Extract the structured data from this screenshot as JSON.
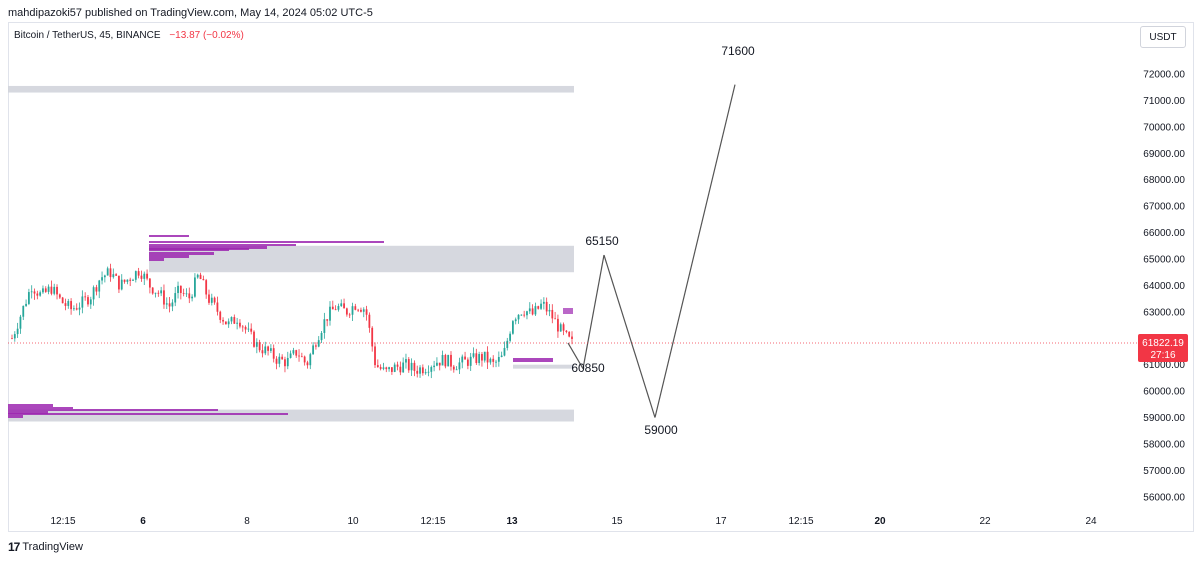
{
  "header": {
    "publisher": "mahdipazoki57 published on TradingView.com, May 14, 2024 05:02 UTC-5"
  },
  "symbol": {
    "name": "Bitcoin / TetherUS, 45, BINANCE",
    "change": "−13.87 (−0.02%)"
  },
  "currency_button": "USDT",
  "footer": {
    "logo_mark": "17",
    "logo_text": "TradingView"
  },
  "chart_data": {
    "type": "line",
    "price_axis": {
      "ticks": [
        56000,
        57000,
        58000,
        59000,
        60000,
        61000,
        62000,
        63000,
        64000,
        65000,
        66000,
        67000,
        68000,
        69000,
        70000,
        71000,
        72000
      ],
      "tick_labels": [
        "56000.00",
        "57000.00",
        "58000.00",
        "59000.00",
        "60000.00",
        "61000.00",
        "62000.00",
        "63000.00",
        "64000.00",
        "65000.00",
        "66000.00",
        "67000.00",
        "68000.00",
        "69000.00",
        "70000.00",
        "71000.00",
        "72000.00"
      ],
      "ylim": [
        55500,
        73100
      ]
    },
    "time_axis": {
      "labels": [
        {
          "text": "12:15",
          "bold": false
        },
        {
          "text": "6",
          "bold": true
        },
        {
          "text": "8",
          "bold": false
        },
        {
          "text": "10",
          "bold": false
        },
        {
          "text": "12:15",
          "bold": false
        },
        {
          "text": "13",
          "bold": true
        },
        {
          "text": "15",
          "bold": false
        },
        {
          "text": "17",
          "bold": false
        },
        {
          "text": "12:15",
          "bold": false
        },
        {
          "text": "20",
          "bold": true
        },
        {
          "text": "22",
          "bold": false
        },
        {
          "text": "24",
          "bold": false
        }
      ]
    },
    "current_price": {
      "value": 61822.19,
      "label": "61822.19",
      "countdown": "27:16",
      "color": "#f23645"
    },
    "zones": [
      {
        "name": "zone-top",
        "low": 71300,
        "high": 71550
      },
      {
        "name": "zone-mid",
        "low": 64500,
        "high": 65500
      },
      {
        "name": "zone-low",
        "low": 58850,
        "high": 59300
      },
      {
        "name": "zone-small",
        "low": 60850,
        "high": 61000
      }
    ],
    "projection": {
      "points": [
        {
          "label": "61822",
          "value": 61822
        },
        {
          "label": "60850",
          "value": 60850
        },
        {
          "label": "65150",
          "value": 65150
        },
        {
          "label": "59000",
          "value": 59000
        },
        {
          "label": "71600",
          "value": 71600
        }
      ],
      "annotations": [
        "60850",
        "65150",
        "59000",
        "71600"
      ]
    },
    "price_path": [
      62000,
      63000,
      64000,
      63600,
      63900,
      63400,
      63100,
      63300,
      63600,
      64300,
      64500,
      64000,
      64300,
      64600,
      64000,
      63700,
      63200,
      63800,
      63500,
      64400,
      63500,
      63000,
      62500,
      62800,
      62200,
      61700,
      61500,
      61200,
      61100,
      61500,
      61000,
      62000,
      62800,
      63200,
      63000,
      63300,
      63100,
      61000,
      60700,
      60900,
      61000,
      60800,
      60900,
      61100,
      61200,
      61000,
      61100,
      61200,
      61300,
      61000,
      61300,
      62800,
      63100,
      62900,
      63300,
      62800,
      62200,
      61800
    ],
    "colors": {
      "up": "#26a69a",
      "down": "#f23645",
      "zone": "#d1d4dc",
      "profile": "#9c27b0",
      "line": "#555555"
    }
  }
}
